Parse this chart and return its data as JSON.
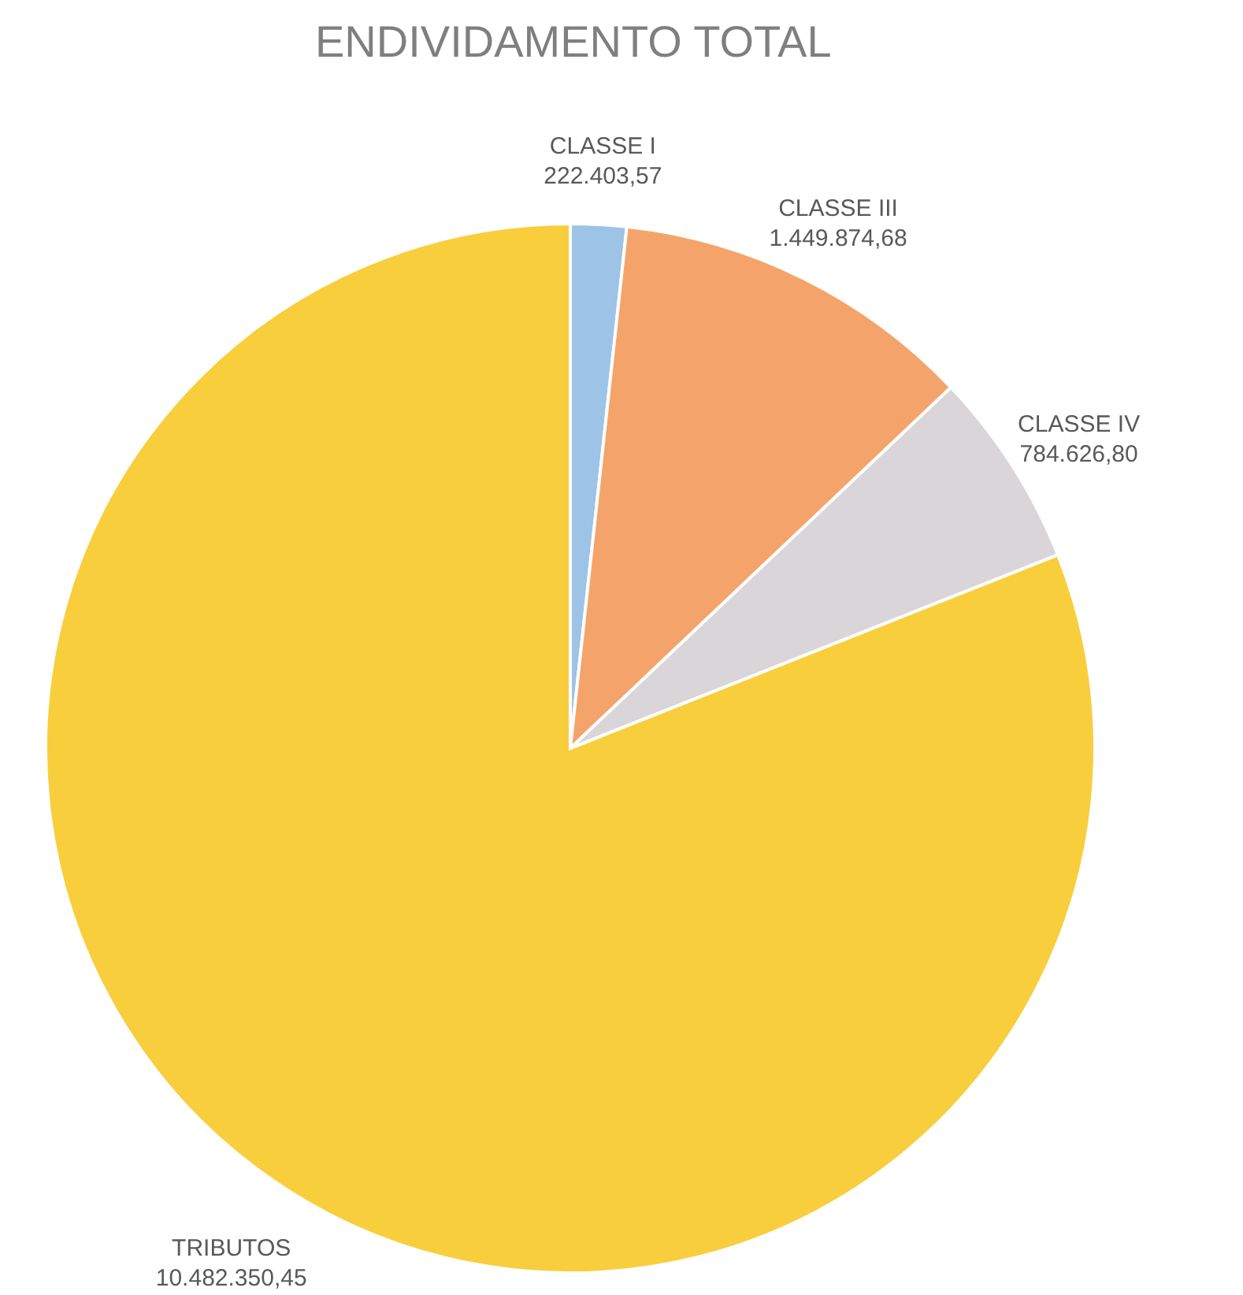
{
  "chart_data": {
    "type": "pie",
    "title": "ENDIVIDAMENTO TOTAL",
    "categories": [
      "CLASSE I",
      "CLASSE III",
      "CLASSE IV",
      "TRIBUTOS"
    ],
    "values": [
      222403.57,
      1449874.68,
      784626.8,
      10482350.45
    ],
    "value_labels": [
      "222.403,57",
      "1.449.874,68",
      "784.626,80",
      "10.482.350,45"
    ],
    "colors": [
      "#9dc3e6",
      "#f4a46a",
      "#d9d5d9",
      "#f9ce3c"
    ]
  }
}
